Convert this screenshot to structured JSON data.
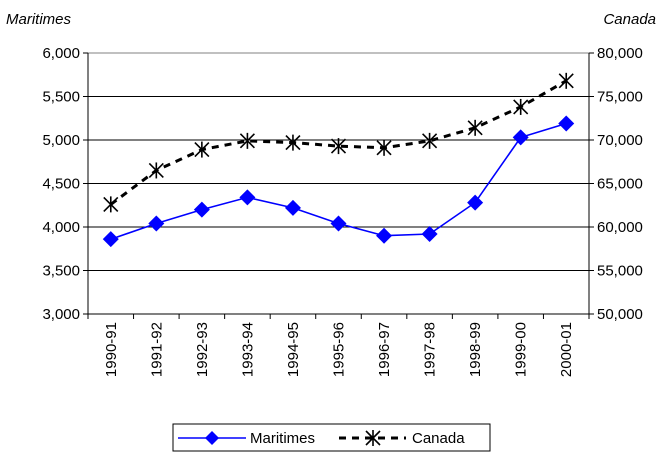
{
  "chart_data": {
    "type": "line",
    "categories": [
      "1990-91",
      "1991-92",
      "1992-93",
      "1993-94",
      "1994-95",
      "1995-96",
      "1996-97",
      "1997-98",
      "1998-99",
      "1999-00",
      "2000-01"
    ],
    "left_axis": {
      "label": "Maritimes",
      "range": [
        3000,
        6000
      ],
      "ticks": [
        3000,
        3500,
        4000,
        4500,
        5000,
        5500,
        6000
      ],
      "tick_labels": [
        "3,000",
        "3,500",
        "4,000",
        "4,500",
        "5,000",
        "5,500",
        "6,000"
      ]
    },
    "right_axis": {
      "label": "Canada",
      "range": [
        50000,
        80000
      ],
      "ticks": [
        50000,
        55000,
        60000,
        65000,
        70000,
        75000,
        80000
      ],
      "tick_labels": [
        "50,000",
        "55,000",
        "60,000",
        "65,000",
        "70,000",
        "75,000",
        "80,000"
      ]
    },
    "series": [
      {
        "name": "Maritimes",
        "axis": "left",
        "color": "#0000ff",
        "marker": "diamond",
        "line_style": "solid",
        "values": [
          3860,
          4040,
          4200,
          4340,
          4220,
          4040,
          3900,
          3920,
          4280,
          5030,
          5190
        ]
      },
      {
        "name": "Canada",
        "axis": "right",
        "color": "#000000",
        "marker": "star",
        "line_style": "dashed",
        "values": [
          62600,
          66500,
          68900,
          69900,
          69700,
          69300,
          69100,
          69900,
          71400,
          73800,
          76800
        ]
      }
    ],
    "grid": "horizontal",
    "legend_position": "bottom"
  }
}
